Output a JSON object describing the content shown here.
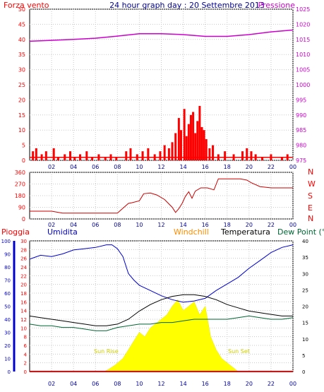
{
  "header": {
    "left_label": "Forza vento",
    "title": "24 hour graph day : 20 Settembre 2013",
    "right_label": "Pressione"
  },
  "bottom_header": {
    "rain_label": "Pioggia",
    "humidity_label": "Umidita",
    "windchill_label": "Windchill",
    "temperature_label": "Temperatura",
    "dewpoint_label": "Dew Point (°C"
  },
  "annotations": {
    "sunrise": "Sun Rise",
    "sunset": "Sun Set"
  },
  "colors": {
    "wind": "#ff0000",
    "pressure": "#cc00cc",
    "humidity": "#0000cc",
    "temperature": "#000000",
    "dewpoint": "#006633",
    "solar": "#ffff00",
    "windchill": "#ff8c00",
    "rain": "#ff0000"
  },
  "chart_data": [
    {
      "type": "bar",
      "title": "24 hour graph day : 20 Settembre 2013",
      "x_ticks": [
        "02",
        "04",
        "06",
        "08",
        "10",
        "12",
        "14",
        "16",
        "18",
        "20",
        "22",
        "00"
      ],
      "y_left": {
        "label": "Forza vento",
        "ylim": [
          0,
          50
        ],
        "ticks": [
          0,
          5,
          10,
          15,
          20,
          25,
          30,
          35,
          40,
          45,
          50
        ]
      },
      "y_right": {
        "label": "Pressione",
        "ylim": [
          975,
          1025
        ],
        "ticks": [
          975,
          980,
          985,
          990,
          995,
          1000,
          1005,
          1010,
          1015,
          1020,
          1025
        ]
      },
      "series": [
        {
          "name": "Forza vento",
          "type": "bar",
          "axis": "left",
          "x": [
            0.3,
            0.6,
            1.1,
            1.5,
            2.2,
            2.6,
            3.2,
            3.7,
            4.1,
            4.6,
            5.2,
            5.7,
            6.3,
            6.9,
            7.4,
            7.9,
            8.8,
            9.2,
            9.8,
            10.3,
            10.8,
            11.4,
            11.9,
            12.3,
            12.7,
            13.0,
            13.3,
            13.6,
            13.8,
            14.1,
            14.3,
            14.5,
            14.7,
            14.9,
            15.1,
            15.3,
            15.5,
            15.7,
            15.9,
            16.1,
            16.4,
            16.7,
            17.2,
            17.8,
            18.6,
            19.4,
            19.8,
            20.2,
            20.6,
            21.2,
            22.0,
            23.0,
            23.5
          ],
          "y": [
            3,
            4,
            2,
            3,
            4,
            1,
            2,
            3,
            1,
            2,
            3,
            1,
            2,
            1,
            2,
            1,
            3,
            4,
            2,
            3,
            4,
            2,
            3,
            5,
            4,
            6,
            9,
            14,
            10,
            17,
            8,
            12,
            15,
            16,
            9,
            13,
            18,
            11,
            10,
            7,
            4,
            5,
            2,
            3,
            2,
            3,
            4,
            3,
            2,
            1,
            2,
            1,
            2
          ]
        },
        {
          "name": "Pressione",
          "type": "line",
          "axis": "right",
          "x": [
            0,
            2,
            4,
            6,
            8,
            10,
            12,
            14,
            16,
            18,
            20,
            22,
            24
          ],
          "y": [
            1014.4,
            1014.7,
            1015.0,
            1015.4,
            1016.1,
            1016.9,
            1016.9,
            1016.6,
            1016.0,
            1016.0,
            1016.6,
            1017.5,
            1018.1
          ]
        }
      ]
    },
    {
      "type": "line",
      "title": "",
      "x_ticks": [
        "02",
        "04",
        "06",
        "08",
        "10",
        "12",
        "14",
        "16",
        "18",
        "20",
        "22",
        "00"
      ],
      "y_left": {
        "ylim": [
          0,
          360
        ],
        "ticks": [
          0,
          90,
          180,
          270,
          360
        ]
      },
      "y_right_labels": [
        "N",
        "W",
        "S",
        "E",
        "N"
      ],
      "series": [
        {
          "name": "wind direction",
          "x": [
            0,
            2,
            3,
            5,
            8,
            9,
            9.3,
            10,
            10.4,
            11.0,
            11.6,
            12.3,
            13.0,
            13.3,
            13.6,
            13.9,
            14.2,
            14.5,
            14.8,
            15.1,
            15.6,
            16.2,
            16.8,
            17.2,
            18.5,
            19.2,
            19.8,
            20.2,
            21.0,
            22.0,
            24.0
          ],
          "y": [
            60,
            60,
            45,
            45,
            45,
            120,
            125,
            140,
            195,
            200,
            185,
            150,
            90,
            50,
            80,
            120,
            175,
            210,
            160,
            215,
            240,
            240,
            225,
            310,
            310,
            310,
            300,
            280,
            250,
            240,
            240
          ]
        }
      ]
    },
    {
      "type": "line",
      "title": "",
      "x_ticks": [
        "02",
        "04",
        "06",
        "08",
        "10",
        "12",
        "14",
        "16",
        "18",
        "20",
        "22",
        "00"
      ],
      "y_humidity": {
        "label": "Umidita",
        "ylim": [
          0,
          100
        ],
        "ticks": [
          0,
          10,
          20,
          30,
          40,
          50,
          60,
          70,
          80,
          90,
          100
        ]
      },
      "y_rain": {
        "label": "Pioggia",
        "ylim": [
          0,
          30
        ],
        "ticks": [
          0,
          2,
          4,
          6,
          8,
          10,
          12,
          14,
          16,
          18,
          20,
          22,
          24,
          26,
          28,
          30
        ]
      },
      "y_temperature": {
        "label": "Temperatura",
        "ylim": [
          0,
          40
        ],
        "ticks": [
          0,
          5,
          10,
          15,
          20,
          25,
          30,
          35,
          40
        ]
      },
      "series": [
        {
          "name": "Umidita",
          "axis": "humidity",
          "x": [
            0,
            1,
            2,
            3,
            4,
            5,
            6,
            7,
            7.5,
            8,
            8.5,
            9,
            9.5,
            10,
            11,
            12,
            13,
            14,
            15,
            16,
            17,
            18,
            19,
            20,
            21,
            22,
            23,
            24
          ],
          "y": [
            86,
            89,
            88,
            90,
            93,
            94,
            95,
            97,
            97,
            94,
            88,
            75,
            70,
            66,
            62,
            58,
            55,
            53,
            54,
            56,
            62,
            67,
            72,
            79,
            85,
            91,
            95,
            97
          ]
        },
        {
          "name": "Temperatura",
          "axis": "temperature",
          "x": [
            0,
            1,
            2,
            3,
            4,
            5,
            6,
            7,
            8,
            9,
            10,
            11,
            12,
            13,
            14,
            15,
            16,
            17,
            18,
            19,
            20,
            21,
            22,
            23,
            24
          ],
          "y": [
            17.0,
            16.5,
            16.0,
            15.5,
            15.0,
            14.5,
            14.0,
            14.0,
            14.5,
            16.0,
            18.5,
            20.5,
            22.0,
            23.0,
            23.5,
            23.5,
            23.0,
            22.0,
            20.5,
            19.5,
            18.5,
            18.0,
            17.5,
            17.0,
            17.0
          ]
        },
        {
          "name": "Dew Point",
          "axis": "temperature",
          "x": [
            0,
            1,
            2,
            3,
            4,
            5,
            6,
            7,
            8,
            9,
            10,
            11,
            12,
            13,
            14,
            15,
            16,
            17,
            18,
            19,
            20,
            21,
            22,
            23,
            24
          ],
          "y": [
            14.5,
            14.0,
            14.0,
            13.5,
            13.5,
            13.0,
            12.5,
            12.5,
            13.5,
            14.0,
            14.5,
            14.5,
            15.0,
            15.0,
            15.5,
            16.0,
            16.0,
            16.0,
            16.0,
            16.5,
            17.0,
            16.5,
            16.0,
            16.0,
            16.5
          ]
        },
        {
          "name": "Solar",
          "axis": "rain",
          "type": "area",
          "x": [
            6.8,
            7.2,
            7.8,
            8.5,
            9.0,
            9.5,
            10.0,
            10.5,
            11.0,
            11.5,
            12.0,
            12.5,
            13.0,
            13.5,
            14.0,
            14.5,
            15.0,
            15.5,
            16.0,
            16.5,
            17.0,
            17.5,
            18.0,
            18.5,
            19.0
          ],
          "y": [
            0,
            0.5,
            1.5,
            3,
            5,
            7,
            9,
            8,
            10,
            11,
            12,
            13,
            15,
            16.5,
            14,
            15,
            16,
            13,
            15,
            8,
            5,
            3,
            2,
            1,
            0
          ]
        },
        {
          "name": "Pioggia",
          "axis": "rain",
          "x": [
            0,
            24
          ],
          "y": [
            0,
            0
          ]
        }
      ]
    }
  ]
}
